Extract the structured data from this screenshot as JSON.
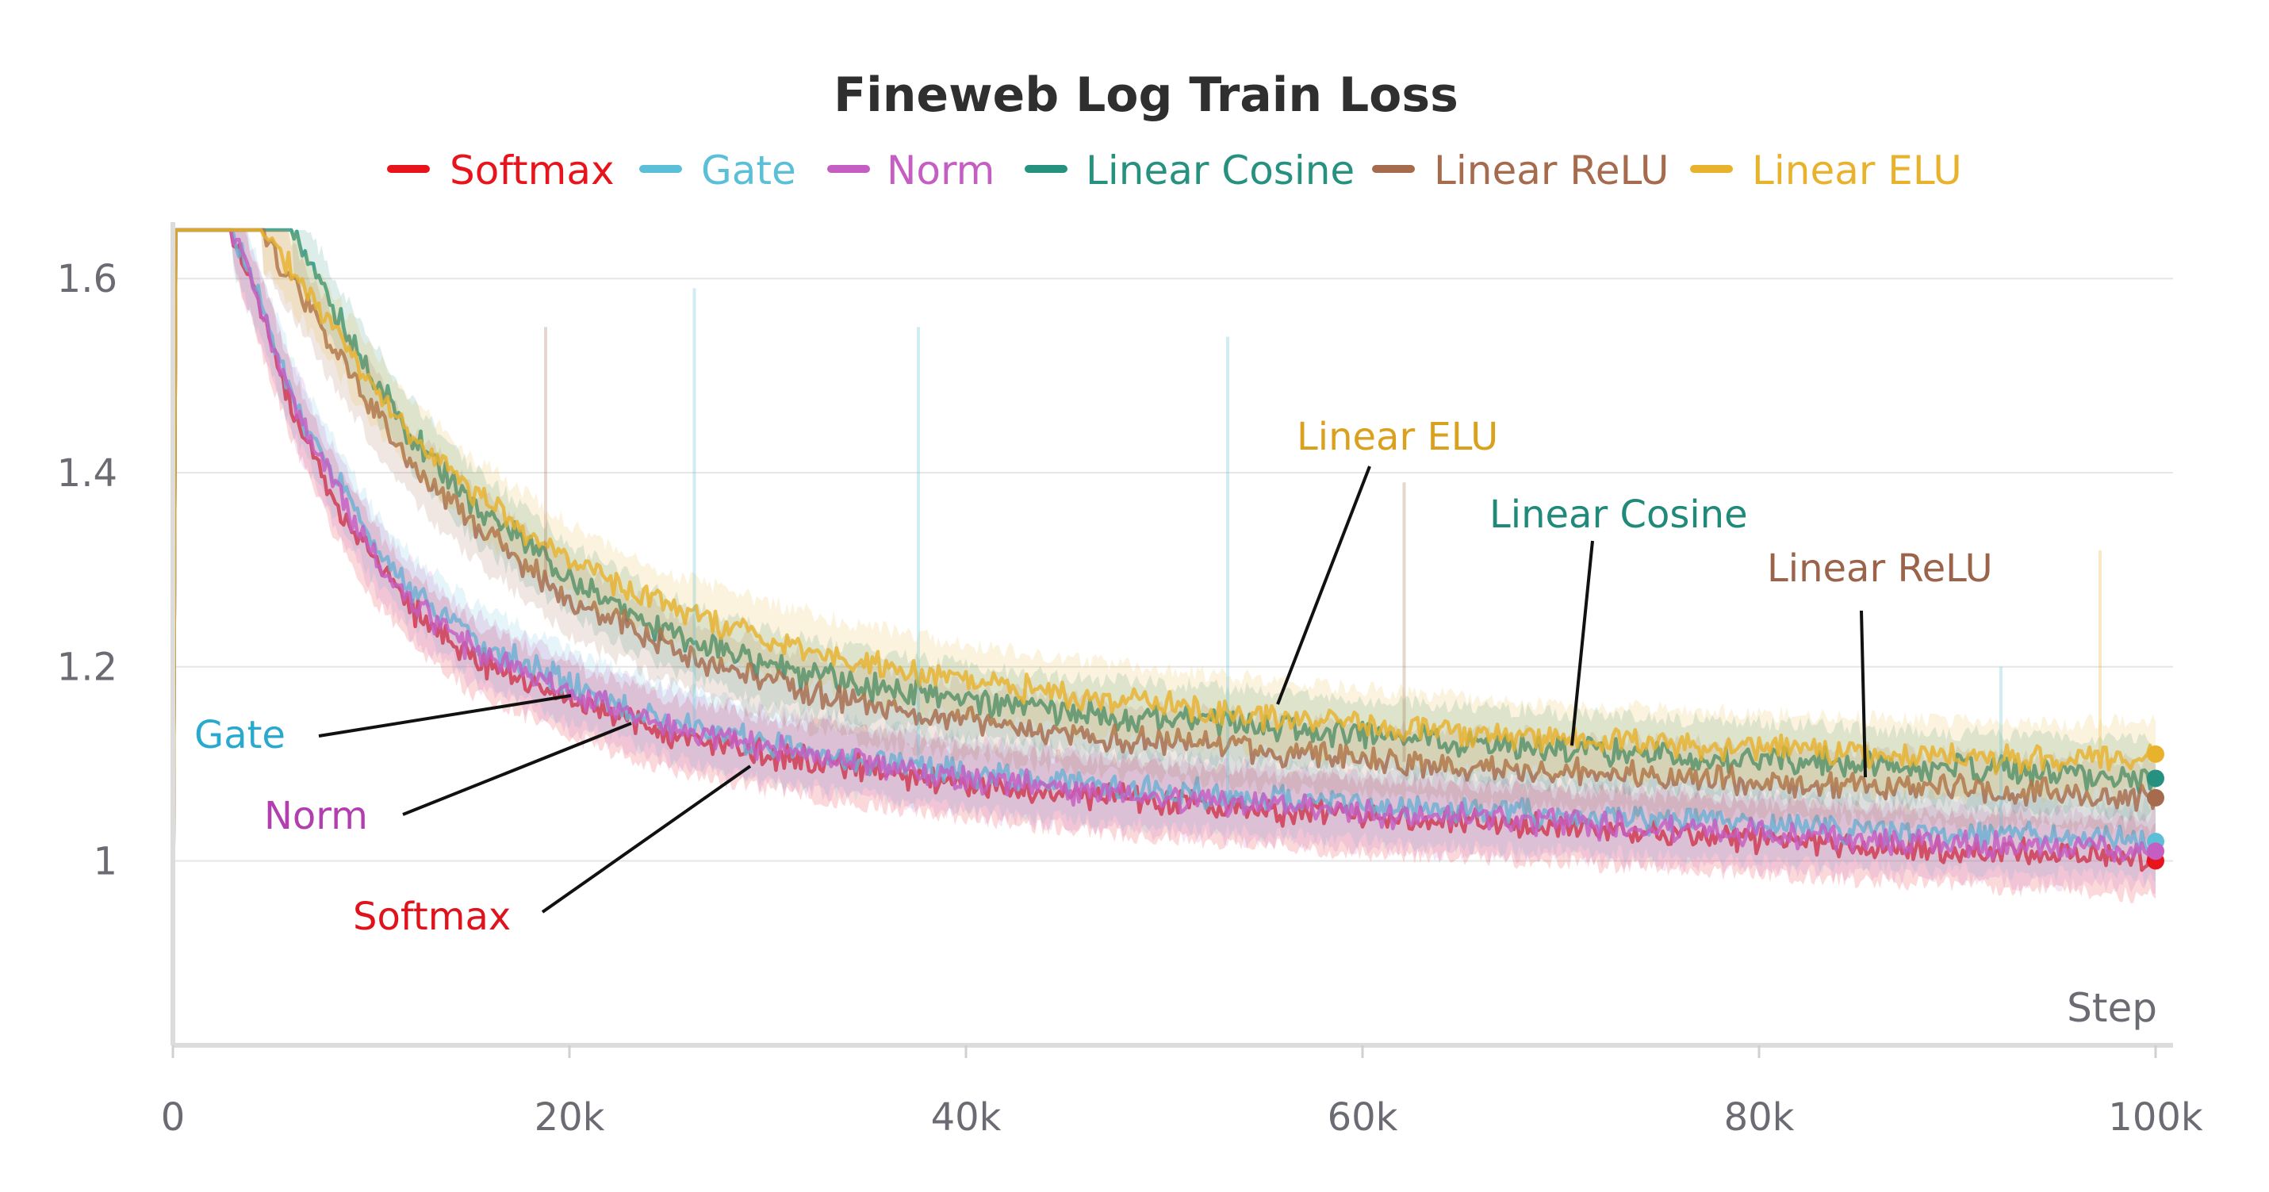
{
  "chart_data": {
    "type": "line",
    "title": "Fineweb Log Train Loss",
    "xlabel": "Step",
    "ylabel": "",
    "xlim": [
      0,
      100000
    ],
    "ylim": [
      0.81,
      1.65
    ],
    "grid": true,
    "legend_position": "top",
    "x_ticks": [
      0,
      20000,
      40000,
      60000,
      80000,
      100000
    ],
    "x_tick_labels": [
      "0",
      "20k",
      "40k",
      "60k",
      "80k",
      "100k"
    ],
    "y_ticks": [
      1.0,
      1.2,
      1.4,
      1.6
    ],
    "y_tick_labels": [
      "1",
      "1.2",
      "1.4",
      "1.6"
    ],
    "x": [
      0,
      3000,
      4500,
      6000,
      8000,
      10000,
      12000,
      15000,
      20000,
      25000,
      30000,
      35000,
      40000,
      45000,
      50000,
      55000,
      60000,
      65000,
      70000,
      75000,
      80000,
      85000,
      90000,
      95000,
      100000
    ],
    "series": [
      {
        "name": "Softmax",
        "color": "#e8141c",
        "values": [
          1.65,
          1.65,
          1.56,
          1.47,
          1.38,
          1.31,
          1.26,
          1.21,
          1.165,
          1.13,
          1.11,
          1.095,
          1.08,
          1.07,
          1.06,
          1.053,
          1.045,
          1.04,
          1.035,
          1.03,
          1.023,
          1.017,
          1.012,
          1.006,
          1.0
        ]
      },
      {
        "name": "Gate",
        "color": "#5bbfd8",
        "values": [
          1.65,
          1.65,
          1.57,
          1.48,
          1.4,
          1.33,
          1.28,
          1.23,
          1.18,
          1.145,
          1.12,
          1.105,
          1.09,
          1.08,
          1.072,
          1.065,
          1.058,
          1.052,
          1.047,
          1.042,
          1.037,
          1.032,
          1.028,
          1.024,
          1.02
        ]
      },
      {
        "name": "Norm",
        "color": "#c55ec2",
        "values": [
          1.65,
          1.65,
          1.565,
          1.475,
          1.39,
          1.32,
          1.27,
          1.22,
          1.172,
          1.138,
          1.115,
          1.1,
          1.085,
          1.074,
          1.065,
          1.058,
          1.05,
          1.045,
          1.04,
          1.034,
          1.028,
          1.022,
          1.017,
          1.013,
          1.01
        ]
      },
      {
        "name": "Linear Cosine",
        "color": "#26917f",
        "values": [
          1.65,
          1.65,
          1.65,
          1.65,
          1.57,
          1.5,
          1.44,
          1.37,
          1.29,
          1.235,
          1.2,
          1.18,
          1.165,
          1.153,
          1.145,
          1.138,
          1.13,
          1.122,
          1.115,
          1.11,
          1.105,
          1.1,
          1.095,
          1.09,
          1.085
        ]
      },
      {
        "name": "Linear ReLU",
        "color": "#a66a4d",
        "values": [
          1.65,
          1.65,
          1.65,
          1.6,
          1.53,
          1.47,
          1.41,
          1.35,
          1.27,
          1.22,
          1.185,
          1.16,
          1.145,
          1.132,
          1.122,
          1.113,
          1.105,
          1.098,
          1.092,
          1.087,
          1.082,
          1.078,
          1.074,
          1.07,
          1.065
        ]
      },
      {
        "name": "Linear ELU",
        "color": "#e8b22d",
        "values": [
          1.65,
          1.65,
          1.65,
          1.61,
          1.55,
          1.49,
          1.44,
          1.38,
          1.31,
          1.26,
          1.23,
          1.205,
          1.185,
          1.172,
          1.16,
          1.15,
          1.14,
          1.132,
          1.125,
          1.12,
          1.115,
          1.11,
          1.107,
          1.104,
          1.11
        ]
      }
    ],
    "annotations": [
      {
        "text": "Linear ELU",
        "color": "#d9a11e",
        "series": "Linear ELU"
      },
      {
        "text": "Linear Cosine",
        "color": "#1f8a79",
        "series": "Linear Cosine"
      },
      {
        "text": "Linear ReLU",
        "color": "#9a634a",
        "series": "Linear ReLU"
      },
      {
        "text": "Gate",
        "color": "#2aa9cf",
        "series": "Gate"
      },
      {
        "text": "Norm",
        "color": "#b13fae",
        "series": "Norm"
      },
      {
        "text": "Softmax",
        "color": "#e0121b",
        "series": "Softmax"
      }
    ]
  }
}
